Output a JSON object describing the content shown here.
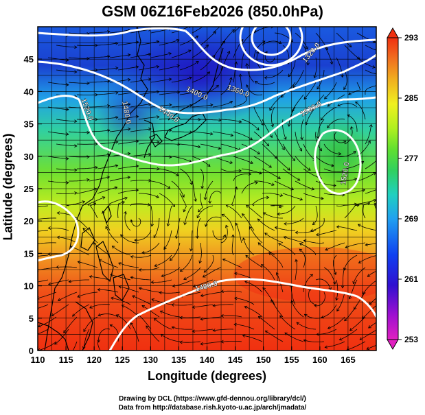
{
  "title": "GSM 06Z16Feb2026 (850.0hPa)",
  "x_axis": {
    "label": "Longitude (degrees)",
    "ticks": [
      "110",
      "115",
      "120",
      "125",
      "130",
      "135",
      "140",
      "145",
      "150",
      "155",
      "160",
      "165"
    ]
  },
  "y_axis": {
    "label": "Latitude  (degrees)",
    "ticks": [
      "0",
      "5",
      "10",
      "15",
      "20",
      "25",
      "30",
      "35",
      "40",
      "45"
    ]
  },
  "colorbar": {
    "ticks": [
      "253",
      "261",
      "269",
      "277",
      "285",
      "293"
    ],
    "colors": [
      "#e020c0",
      "#a000d0",
      "#3010d0",
      "#1040f0",
      "#20a0f0",
      "#20d0c0",
      "#30d060",
      "#60e030",
      "#b0f020",
      "#f0f020",
      "#f0b020",
      "#f07020",
      "#f03010"
    ]
  },
  "contour_labels": [
    "1360.0",
    "1400.0",
    "1440.0",
    "1480.0",
    "1520.0",
    "1520.0",
    "1480.0",
    "1320.0",
    "1520.0"
  ],
  "credits": {
    "line1": "Drawing by DCL (https://www.gfd-dennou.org/library/dcl/)",
    "line2": "Data from http://database.rish.kyoto-u.ac.jp/arch/jmadata/"
  }
}
